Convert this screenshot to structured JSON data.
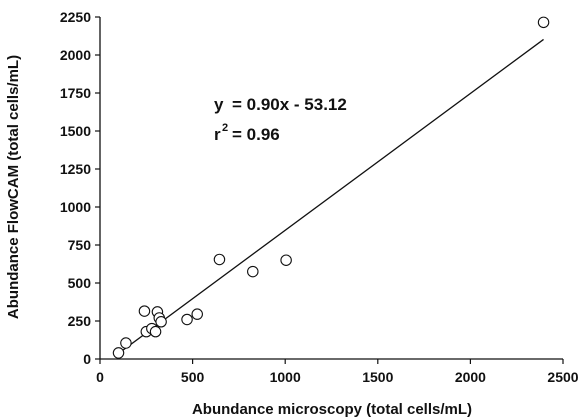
{
  "chart_data": {
    "type": "scatter",
    "xlabel": "Abundance microscopy (total cells/mL)",
    "ylabel": "Abundance FlowCAM (total cells/mL)",
    "xlim": [
      0,
      2500
    ],
    "ylim": [
      0,
      2250
    ],
    "x_ticks": [
      0,
      500,
      1000,
      1500,
      2000,
      2500
    ],
    "y_ticks": [
      0,
      250,
      500,
      750,
      1000,
      1250,
      1500,
      1750,
      2000,
      2250
    ],
    "grid": false,
    "marker": "open-circle",
    "points": [
      {
        "x": 100,
        "y": 40
      },
      {
        "x": 140,
        "y": 105
      },
      {
        "x": 240,
        "y": 315
      },
      {
        "x": 250,
        "y": 180
      },
      {
        "x": 280,
        "y": 200
      },
      {
        "x": 300,
        "y": 180
      },
      {
        "x": 310,
        "y": 310
      },
      {
        "x": 320,
        "y": 270
      },
      {
        "x": 330,
        "y": 245
      },
      {
        "x": 470,
        "y": 260
      },
      {
        "x": 525,
        "y": 295
      },
      {
        "x": 645,
        "y": 655
      },
      {
        "x": 825,
        "y": 575
      },
      {
        "x": 1005,
        "y": 650
      },
      {
        "x": 2395,
        "y": 2215
      }
    ],
    "fit_line": {
      "slope": 0.9,
      "intercept": -53.12,
      "x_range": [
        100,
        2395
      ]
    },
    "annotations": {
      "equation_label": "y",
      "equation_text": "= 0.90x - 53.12",
      "r2_label": "r",
      "r2_sup": "2",
      "r2_text": "= 0.96"
    }
  }
}
